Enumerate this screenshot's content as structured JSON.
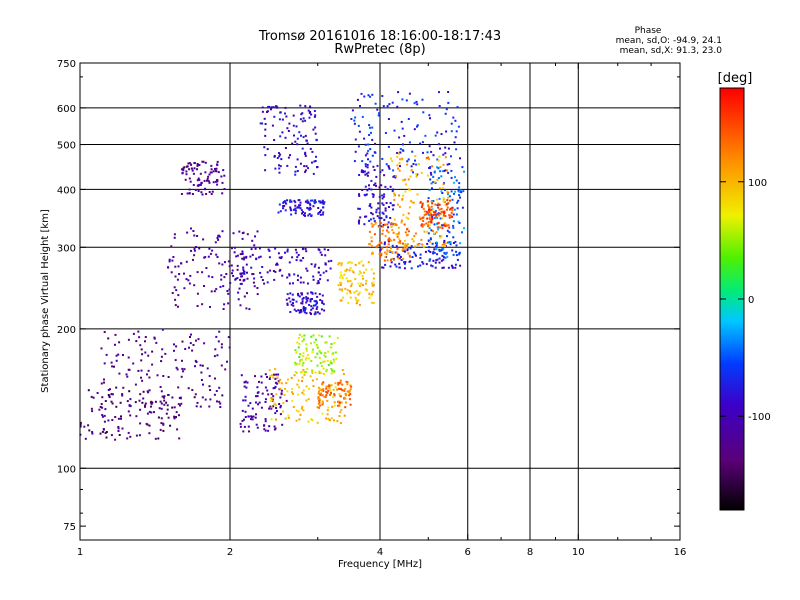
{
  "chart_data": {
    "type": "scatter",
    "title": "Tromsø 20161016 18:16:00-18:17:43",
    "subtitle": "RwPretec (8p)",
    "xlabel": "Frequency [MHz]",
    "ylabel": "Stationary phase Virtual Height [km]",
    "x_scale": "log",
    "y_scale": "log",
    "xlim": [
      1,
      16
    ],
    "ylim": [
      70,
      750
    ],
    "x_ticks": [
      1,
      2,
      4,
      6,
      8,
      10,
      16
    ],
    "y_ticks": [
      75,
      100,
      200,
      300,
      400,
      500,
      600,
      750
    ],
    "grid": true,
    "stats": {
      "heading": "Phase",
      "line1": "mean, sd,O: -94.9, 24.1",
      "line2": "mean, sd,X:  91.3, 23.0"
    },
    "colorbar": {
      "label": "[deg]",
      "range": [
        -180,
        180
      ],
      "ticks": [
        100,
        0,
        -100
      ],
      "colormap": "rainbow (black → purple → blue → cyan → green → yellow → orange → red)"
    },
    "series": [
      {
        "clusters": [
          {
            "f": [
              1.0,
              1.6
            ],
            "h": [
              115,
              150
            ],
            "phase": -135
          },
          {
            "f": [
              1.1,
              2.0
            ],
            "h": [
              135,
              200
            ],
            "phase": -125
          },
          {
            "f": [
              1.5,
              2.3
            ],
            "h": [
              220,
              330
            ],
            "phase": -115
          },
          {
            "f": [
              1.6,
              1.95
            ],
            "h": [
              390,
              460
            ],
            "phase": -120
          },
          {
            "f": [
              2.0,
              3.2
            ],
            "h": [
              250,
              300
            ],
            "phase": -95
          },
          {
            "f": [
              2.1,
              2.6
            ],
            "h": [
              120,
              160
            ],
            "phase": -110
          },
          {
            "f": [
              2.3,
              3.0
            ],
            "h": [
              430,
              610
            ],
            "phase": -90
          },
          {
            "f": [
              2.5,
              3.1
            ],
            "h": [
              350,
              380
            ],
            "phase": -80
          },
          {
            "f": [
              2.6,
              3.1
            ],
            "h": [
              215,
              240
            ],
            "phase": -85
          },
          {
            "f": [
              3.5,
              5.8
            ],
            "h": [
              430,
              650
            ],
            "phase": -70
          },
          {
            "f": [
              3.6,
              4.3
            ],
            "h": [
              330,
              450
            ],
            "phase": -88
          },
          {
            "f": [
              4.0,
              5.8
            ],
            "h": [
              270,
              310
            ],
            "phase": -78
          },
          {
            "f": [
              5.0,
              5.9
            ],
            "h": [
              280,
              450
            ],
            "phase": -45
          }
        ]
      },
      {
        "clusters": [
          {
            "f": [
              2.4,
              3.4
            ],
            "h": [
              125,
              165
            ],
            "phase": 95
          },
          {
            "f": [
              2.7,
              3.3
            ],
            "h": [
              160,
              195
            ],
            "phase": 55
          },
          {
            "f": [
              3.0,
              3.5
            ],
            "h": [
              135,
              155
            ],
            "phase": 130
          },
          {
            "f": [
              3.3,
              3.9
            ],
            "h": [
              225,
              280
            ],
            "phase": 95
          },
          {
            "f": [
              3.8,
              4.6
            ],
            "h": [
              280,
              340
            ],
            "phase": 125
          },
          {
            "f": [
              4.2,
              5.5
            ],
            "h": [
              300,
              480
            ],
            "phase": 105
          },
          {
            "f": [
              4.8,
              5.6
            ],
            "h": [
              330,
              380
            ],
            "phase": 150
          }
        ]
      }
    ]
  }
}
